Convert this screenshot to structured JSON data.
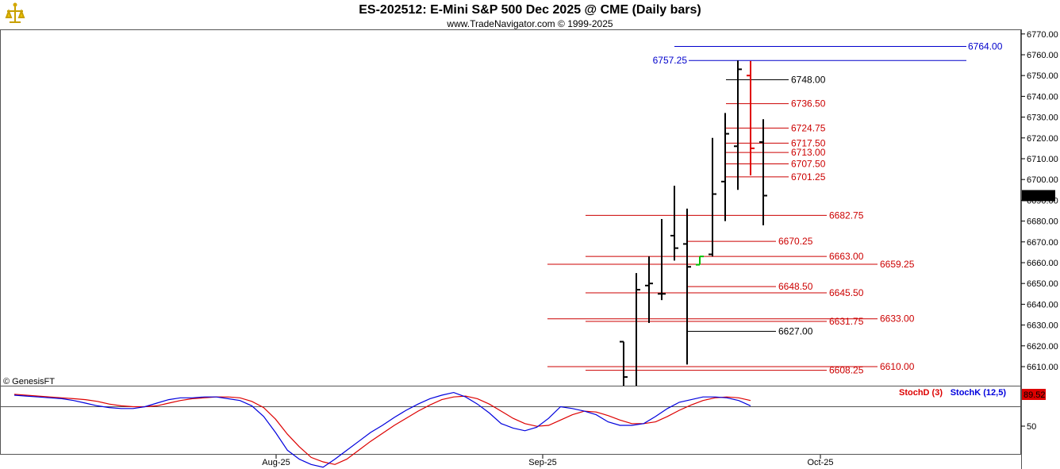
{
  "title": "ES-202512:  E-Mini S&P 500 Dec 2025 @ CME  (Daily bars)",
  "subtitle": "www.TradeNavigator.com © 1999-2025",
  "watermark": "© GenesisFT",
  "icon": "trade-navigator-logo-icon",
  "chart_data": {
    "type": "ohlc-bar",
    "price_axis": {
      "ylim": [
        6605,
        6775
      ],
      "ticks": [
        6610,
        6620,
        6630,
        6640,
        6650,
        6660,
        6670,
        6680,
        6690,
        6700,
        6710,
        6720,
        6730,
        6740,
        6750,
        6760,
        6770
      ],
      "tick_labels": [
        "6610.00",
        "6620.00",
        "6630.00",
        "6640.00",
        "6650.00",
        "6660.00",
        "6670.00",
        "6680.00",
        "6690.00",
        "6700.00",
        "6710.00",
        "6720.00",
        "6730.00",
        "6740.00",
        "6750.00",
        "6760.00",
        "6770.00"
      ],
      "last_price": "6692.25"
    },
    "x_labels": [
      "Aug-25",
      "Sep-25",
      "Oct-25"
    ],
    "bars": [
      {
        "o": 6622,
        "h": 6619,
        "l": 6600,
        "c": 6605,
        "color": "#000000"
      },
      {
        "o": 6600,
        "h": 6655,
        "l": 6600,
        "c": 6647,
        "color": "#000000"
      },
      {
        "o": 6649,
        "h": 6663,
        "l": 6631,
        "c": 6650,
        "color": "#000000"
      },
      {
        "o": 6645,
        "h": 6681,
        "l": 6642,
        "c": 6645,
        "color": "#000000"
      },
      {
        "o": 6673,
        "h": 6697,
        "l": 6661,
        "c": 6667,
        "color": "#000000"
      },
      {
        "o": 6669,
        "h": 6686,
        "l": 6611,
        "c": 6658,
        "color": "#000000"
      },
      {
        "o": 6659,
        "h": 6663,
        "l": 6659,
        "c": 6663,
        "color": "#00c000"
      },
      {
        "o": 6664,
        "h": 6720,
        "l": 6663,
        "c": 6693,
        "color": "#000000"
      },
      {
        "o": 6699,
        "h": 6732,
        "l": 6680,
        "c": 6722,
        "color": "#000000"
      },
      {
        "o": 6716,
        "h": 6757.25,
        "l": 6695,
        "c": 6753,
        "color": "#000000"
      },
      {
        "o": 6750,
        "h": 6757,
        "l": 6702,
        "c": 6715,
        "color": "#e00000"
      },
      {
        "o": 6718,
        "h": 6729,
        "l": 6678,
        "c": 6692.25,
        "color": "#000000"
      }
    ],
    "levels": [
      {
        "label": "6764.00",
        "value": 6764.0,
        "color": "#0000cc",
        "label_side": "right",
        "big": true
      },
      {
        "label": "6757.25",
        "value": 6757.25,
        "color": "#0000cc",
        "label_side": "left",
        "big": true
      },
      {
        "label": "6748.00",
        "value": 6748.0,
        "color": "#000000"
      },
      {
        "label": "6736.50",
        "value": 6736.5,
        "color": "#cc0000"
      },
      {
        "label": "6724.75",
        "value": 6724.75,
        "color": "#cc0000"
      },
      {
        "label": "6717.50",
        "value": 6717.5,
        "color": "#cc0000"
      },
      {
        "label": "6713.00",
        "value": 6713.0,
        "color": "#cc0000"
      },
      {
        "label": "6707.50",
        "value": 6707.5,
        "color": "#cc0000"
      },
      {
        "label": "6701.25",
        "value": 6701.25,
        "color": "#cc0000"
      },
      {
        "label": "6682.75",
        "value": 6682.75,
        "color": "#cc0000"
      },
      {
        "label": "6670.25",
        "value": 6670.25,
        "color": "#cc0000"
      },
      {
        "label": "6663.00",
        "value": 6663.0,
        "color": "#cc0000"
      },
      {
        "label": "6659.25",
        "value": 6659.25,
        "color": "#cc0000"
      },
      {
        "label": "6648.50",
        "value": 6648.5,
        "color": "#cc0000"
      },
      {
        "label": "6645.50",
        "value": 6645.5,
        "color": "#cc0000"
      },
      {
        "label": "6633.00",
        "value": 6633.0,
        "color": "#cc0000"
      },
      {
        "label": "6631.75",
        "value": 6631.75,
        "color": "#cc0000"
      },
      {
        "label": "6627.00",
        "value": 6627.0,
        "color": "#000000"
      },
      {
        "label": "6610.00",
        "value": 6610.0,
        "color": "#cc0000"
      },
      {
        "label": "6608.25",
        "value": 6608.25,
        "color": "#cc0000"
      }
    ],
    "stochastic": {
      "legend": [
        {
          "name": "StochD (3)",
          "color": "#dd0000"
        },
        {
          "name": "StochK (12,5)",
          "color": "#0000dd"
        }
      ],
      "last_value": "89.52",
      "tick_label": "50",
      "stoch_k": [
        92,
        91,
        90,
        89,
        88,
        86,
        83,
        80,
        78,
        77,
        77,
        79,
        83,
        87,
        89,
        89,
        90,
        90,
        88,
        86,
        80,
        68,
        50,
        30,
        20,
        14,
        11,
        20,
        30,
        40,
        50,
        58,
        67,
        75,
        82,
        88,
        92,
        95,
        90,
        82,
        72,
        60,
        55,
        52,
        56,
        66,
        79,
        77,
        74,
        70,
        62,
        58,
        58,
        60,
        68,
        77,
        84,
        87,
        90,
        90,
        89,
        86,
        80
      ],
      "stoch_d": [
        93,
        92,
        91,
        90,
        89,
        88,
        87,
        85,
        82,
        80,
        79,
        79,
        80,
        83,
        86,
        88,
        89,
        90,
        90,
        89,
        85,
        78,
        65,
        48,
        34,
        22,
        17,
        14,
        20,
        30,
        40,
        49,
        58,
        66,
        74,
        81,
        87,
        90,
        91,
        88,
        82,
        74,
        66,
        60,
        57,
        58,
        64,
        70,
        74,
        73,
        69,
        64,
        60,
        60,
        62,
        68,
        75,
        81,
        86,
        89,
        90,
        89,
        86
      ]
    }
  }
}
